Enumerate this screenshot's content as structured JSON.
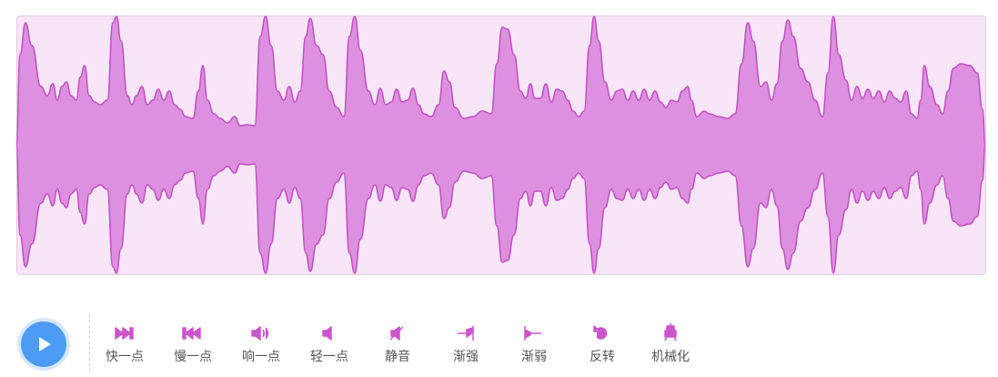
{
  "toolbar": {
    "buttons": [
      "快一点",
      "慢一点",
      "响一点",
      "轻一点",
      "静音",
      "渐强",
      "渐弱",
      "反转",
      "机械化"
    ]
  }
}
